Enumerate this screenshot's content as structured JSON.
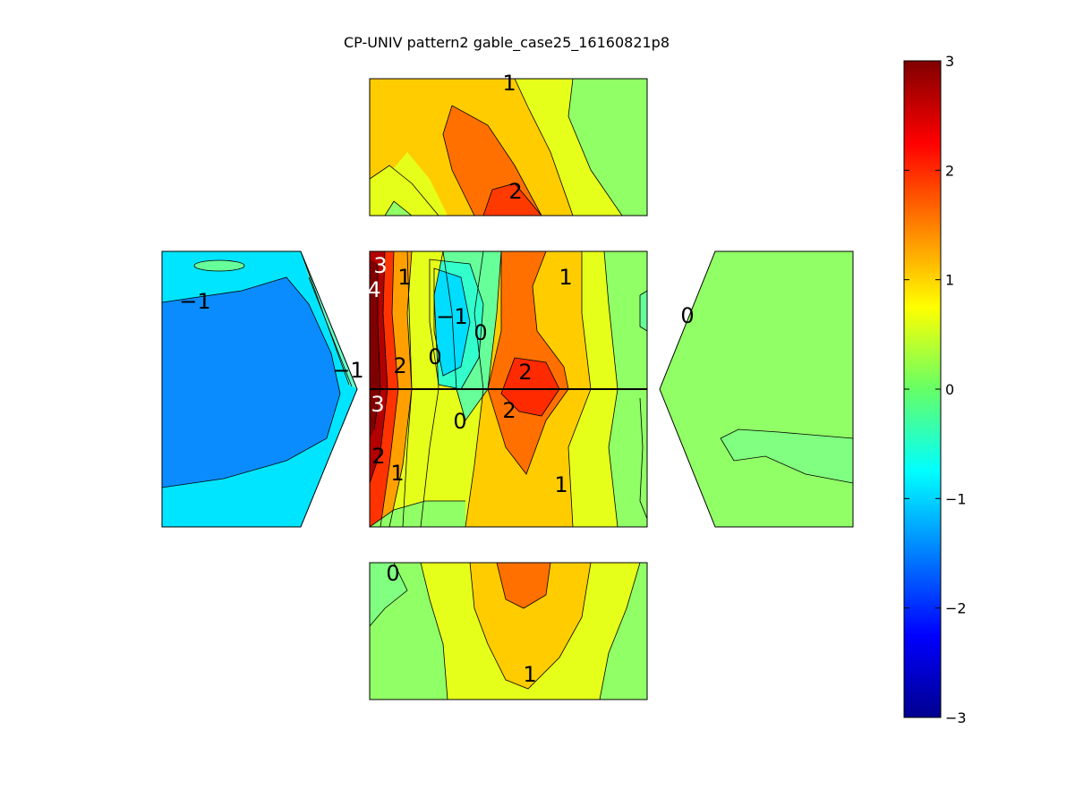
{
  "chart_data": {
    "type": "heatmap",
    "title": "CP-UNIV pattern2 gable_case25_16160821p8",
    "colormap": "jet",
    "colorbar": {
      "range": [
        -3,
        3
      ],
      "ticks": [
        "3",
        "2",
        "1",
        "0",
        "−1",
        "−2",
        "−3"
      ],
      "tick_values": [
        3,
        2,
        1,
        0,
        -1,
        -2,
        -3
      ],
      "position": "right"
    },
    "panels": [
      {
        "name": "top-face",
        "background_value": 0.2,
        "contour_labels": [
          {
            "text": "1",
            "value": 1
          },
          {
            "text": "2",
            "value": 2
          }
        ]
      },
      {
        "name": "left-face",
        "background_value": -0.8,
        "contour_labels": [
          {
            "text": "−1",
            "value": -1
          },
          {
            "text": "−1",
            "value": -1
          }
        ]
      },
      {
        "name": "center-face",
        "background_value": 0.2,
        "contour_labels": [
          {
            "text": "3",
            "value": 3
          },
          {
            "text": "4",
            "value": 4
          },
          {
            "text": "1",
            "value": 1
          },
          {
            "text": "−1",
            "value": -1
          },
          {
            "text": "0",
            "value": 0
          },
          {
            "text": "0",
            "value": 0
          },
          {
            "text": "1",
            "value": 1
          },
          {
            "text": "2",
            "value": 2
          },
          {
            "text": "2",
            "value": 2
          },
          {
            "text": "3",
            "value": 3
          },
          {
            "text": "0",
            "value": 0
          },
          {
            "text": "2",
            "value": 2
          },
          {
            "text": "2",
            "value": 2
          },
          {
            "text": "1",
            "value": 1
          },
          {
            "text": "1",
            "value": 1
          }
        ]
      },
      {
        "name": "right-face",
        "background_value": 0.2,
        "contour_labels": [
          {
            "text": "0",
            "value": 0
          }
        ]
      },
      {
        "name": "bottom-face",
        "background_value": 0.2,
        "contour_labels": [
          {
            "text": "0",
            "value": 0
          },
          {
            "text": "1",
            "value": 1
          }
        ]
      }
    ]
  }
}
